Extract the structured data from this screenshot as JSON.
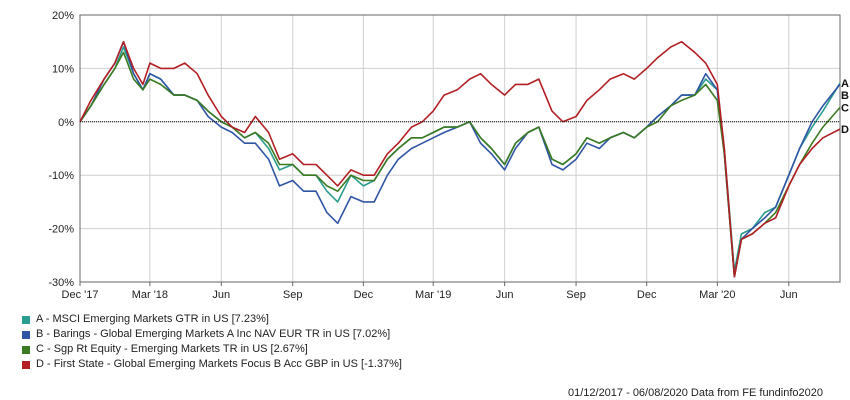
{
  "chart_data": {
    "type": "line",
    "ylim": [
      -30,
      20
    ],
    "yticks": [
      "20%",
      "10%",
      "0%",
      "-10%",
      "-20%",
      "-30%"
    ],
    "ytick_values": [
      20,
      10,
      0,
      -10,
      -20,
      -30
    ],
    "xlim": [
      "2017-12-01",
      "2020-08-06"
    ],
    "xticks": [
      {
        "label": "Dec '17",
        "date": "2017-12-01"
      },
      {
        "label": "Mar '18",
        "date": "2018-03-01"
      },
      {
        "label": "Jun",
        "date": "2018-06-01"
      },
      {
        "label": "Sep",
        "date": "2018-09-01"
      },
      {
        "label": "Dec",
        "date": "2018-12-01"
      },
      {
        "label": "Mar '19",
        "date": "2019-03-01"
      },
      {
        "label": "Jun",
        "date": "2019-06-01"
      },
      {
        "label": "Sep",
        "date": "2019-09-01"
      },
      {
        "label": "Dec",
        "date": "2019-12-01"
      },
      {
        "label": "Mar '20",
        "date": "2020-03-01"
      },
      {
        "label": "Jun",
        "date": "2020-06-01"
      }
    ],
    "grid": true,
    "x": [
      "2017-12-01",
      "2017-12-15",
      "2018-01-01",
      "2018-01-15",
      "2018-01-26",
      "2018-02-08",
      "2018-02-20",
      "2018-03-01",
      "2018-03-15",
      "2018-04-01",
      "2018-04-15",
      "2018-05-01",
      "2018-05-15",
      "2018-06-01",
      "2018-06-15",
      "2018-07-01",
      "2018-07-15",
      "2018-08-01",
      "2018-08-15",
      "2018-09-01",
      "2018-09-15",
      "2018-10-01",
      "2018-10-15",
      "2018-10-29",
      "2018-11-15",
      "2018-12-01",
      "2018-12-15",
      "2019-01-01",
      "2019-01-15",
      "2019-02-01",
      "2019-02-15",
      "2019-03-01",
      "2019-03-15",
      "2019-04-01",
      "2019-04-17",
      "2019-05-01",
      "2019-05-15",
      "2019-06-01",
      "2019-06-15",
      "2019-07-01",
      "2019-07-15",
      "2019-08-01",
      "2019-08-15",
      "2019-09-01",
      "2019-09-15",
      "2019-10-01",
      "2019-10-15",
      "2019-11-01",
      "2019-11-15",
      "2019-12-01",
      "2019-12-15",
      "2020-01-01",
      "2020-01-15",
      "2020-02-01",
      "2020-02-15",
      "2020-03-01",
      "2020-03-10",
      "2020-03-23",
      "2020-04-01",
      "2020-04-15",
      "2020-05-01",
      "2020-05-15",
      "2020-06-01",
      "2020-06-15",
      "2020-07-01",
      "2020-07-15",
      "2020-08-06"
    ],
    "series": [
      {
        "name": "A - MSCI Emerging Markets GTR in US [7.23%]",
        "color": "#2a9d8f",
        "values": [
          0,
          3,
          7,
          10,
          14,
          9,
          6,
          9,
          8,
          5,
          5,
          4,
          2,
          0,
          -1,
          -3,
          -2,
          -5,
          -9,
          -8,
          -10,
          -10,
          -13,
          -15,
          -10,
          -12,
          -11,
          -7,
          -5,
          -3,
          -3,
          -2,
          -1,
          -1,
          0,
          -3,
          -5,
          -8,
          -4,
          -2,
          -1,
          -7,
          -8,
          -6,
          -3,
          -4,
          -3,
          -2,
          -3,
          -1,
          1,
          3,
          5,
          5,
          8,
          6,
          -5,
          -28,
          -21,
          -20,
          -17,
          -16,
          -10,
          -5,
          -1,
          2,
          7.23
        ]
      },
      {
        "name": "B - Barings - Global Emerging Markets A Inc NAV EUR TR in US [7.02%]",
        "color": "#2f55a4",
        "values": [
          0,
          3,
          8,
          11,
          15,
          9,
          6,
          9,
          8,
          5,
          5,
          4,
          1,
          -1,
          -2,
          -4,
          -4,
          -7,
          -12,
          -11,
          -13,
          -13,
          -17,
          -19,
          -14,
          -15,
          -15,
          -10,
          -7,
          -5,
          -4,
          -3,
          -2,
          -1,
          0,
          -4,
          -6,
          -9,
          -5,
          -2,
          -1,
          -8,
          -9,
          -7,
          -4,
          -5,
          -3,
          -2,
          -3,
          -1,
          1,
          3,
          5,
          5,
          9,
          6,
          -6,
          -29,
          -22,
          -20,
          -18,
          -16,
          -10,
          -5,
          0,
          3,
          7.02
        ]
      },
      {
        "name": "C - Sgp Rt Equity - Emerging Markets TR in US [2.67%]",
        "color": "#3c7a22",
        "values": [
          0,
          3,
          7,
          10,
          13,
          8,
          6,
          8,
          7,
          5,
          5,
          4,
          2,
          0,
          -1,
          -3,
          -2,
          -4,
          -8,
          -8,
          -10,
          -10,
          -12,
          -13,
          -10,
          -11,
          -11,
          -7,
          -5,
          -3,
          -3,
          -2,
          -1,
          -1,
          0,
          -3,
          -5,
          -8,
          -4,
          -2,
          -1,
          -7,
          -8,
          -6,
          -3,
          -4,
          -3,
          -2,
          -3,
          -1,
          0,
          3,
          4,
          5,
          7,
          4,
          -6,
          -29,
          -22,
          -21,
          -19,
          -17,
          -12,
          -8,
          -4,
          -1,
          2.67
        ]
      },
      {
        "name": "D - First State - Global Emerging Markets Focus B Acc GBP in US [-1.37%]",
        "color": "#b21f24",
        "values": [
          0,
          4,
          8,
          11,
          15,
          10,
          7,
          11,
          10,
          10,
          11,
          9,
          5,
          1,
          -1,
          -2,
          1,
          -2,
          -7,
          -6,
          -8,
          -8,
          -10,
          -12,
          -9,
          -10,
          -10,
          -6,
          -4,
          -1,
          0,
          2,
          5,
          6,
          8,
          9,
          7,
          5,
          7,
          7,
          8,
          2,
          0,
          1,
          4,
          6,
          8,
          9,
          8,
          10,
          12,
          14,
          15,
          13,
          11,
          7,
          -5,
          -29,
          -22,
          -21,
          -19,
          -18,
          -12,
          -8,
          -5,
          -3,
          -1.37
        ]
      }
    ],
    "end_labels": [
      "A",
      "B",
      "C",
      "D"
    ],
    "legend_position": "bottom-left"
  },
  "footer": "01/12/2017 - 06/08/2020 Data from FE fundinfo2020"
}
